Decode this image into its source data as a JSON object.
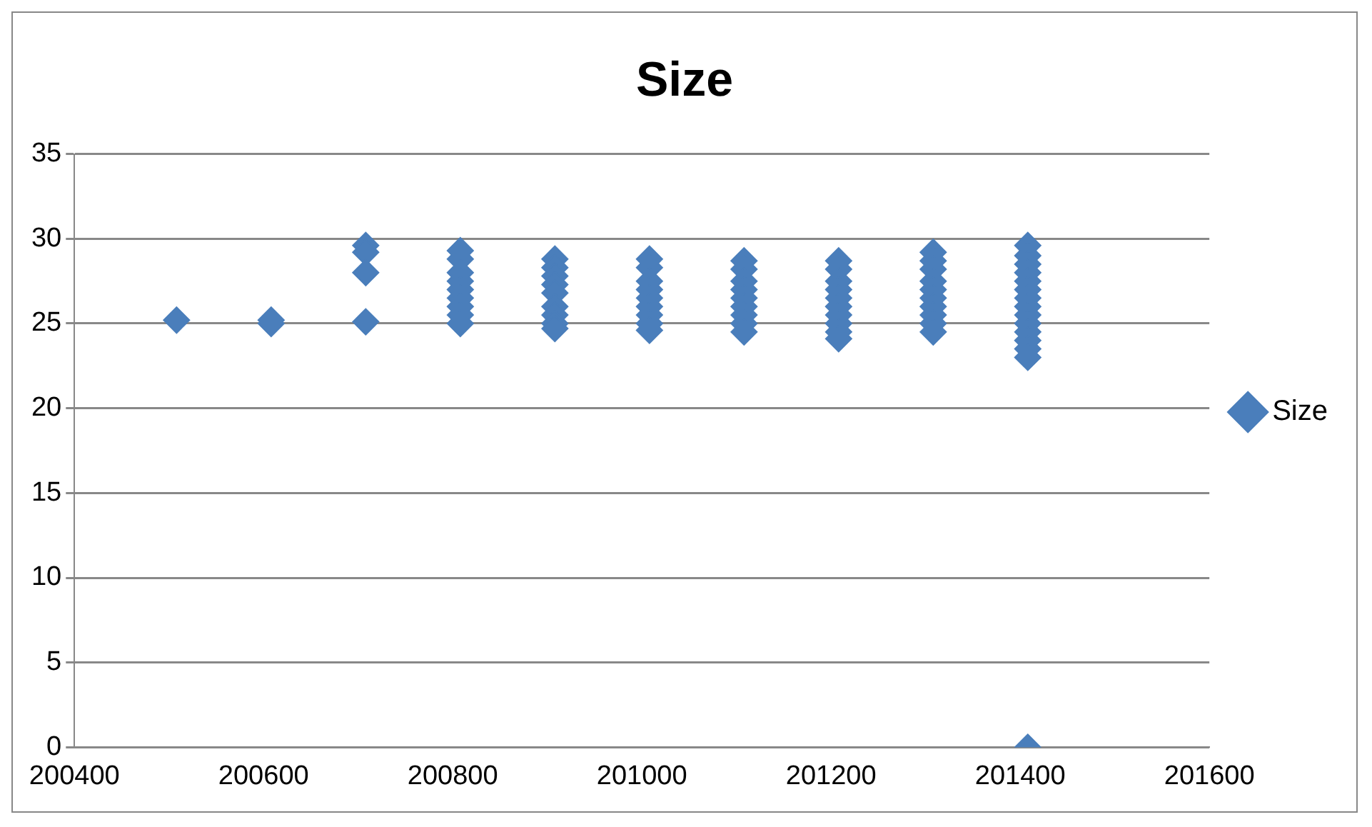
{
  "chart_data": {
    "type": "scatter",
    "title": "Size",
    "marker": "diamond",
    "grid": "y",
    "legend": "right",
    "xlim": [
      200400,
      201600
    ],
    "xticks": [
      200400,
      200600,
      200800,
      201000,
      201200,
      201400,
      201600
    ],
    "ylim": [
      0,
      35
    ],
    "yticks": [
      0,
      5,
      10,
      15,
      20,
      25,
      30,
      35
    ],
    "series": [
      {
        "name": "Size",
        "color": "#4a7ebb",
        "x": [
          200508,
          200608,
          200608,
          200708,
          200708,
          200708,
          200708,
          200808,
          200808,
          200808,
          200808,
          200808,
          200808,
          200808,
          200808,
          200808,
          200908,
          200908,
          200908,
          200908,
          200908,
          200908,
          200908,
          200908,
          200908,
          201008,
          201008,
          201008,
          201008,
          201008,
          201008,
          201008,
          201008,
          201008,
          201108,
          201108,
          201108,
          201108,
          201108,
          201108,
          201108,
          201108,
          201108,
          201208,
          201208,
          201208,
          201208,
          201208,
          201208,
          201208,
          201208,
          201208,
          201208,
          201308,
          201308,
          201308,
          201308,
          201308,
          201308,
          201308,
          201308,
          201308,
          201308,
          201408,
          201408,
          201408,
          201408,
          201408,
          201408,
          201408,
          201408,
          201408,
          201408,
          201408,
          201408,
          201408,
          201408,
          201408
        ],
        "values": [
          25.2,
          25.2,
          25.0,
          29.6,
          29.2,
          28.0,
          25.1,
          29.3,
          28.8,
          28.0,
          27.5,
          27.0,
          26.5,
          26.0,
          25.5,
          25.0,
          28.8,
          28.3,
          27.8,
          27.3,
          26.8,
          26.0,
          25.5,
          25.0,
          24.7,
          28.8,
          28.3,
          27.5,
          27.0,
          26.5,
          26.0,
          25.5,
          25.0,
          24.6,
          28.7,
          28.2,
          27.5,
          27.0,
          26.5,
          26.0,
          25.5,
          25.0,
          24.5,
          28.7,
          28.2,
          27.5,
          27.0,
          26.5,
          26.0,
          25.5,
          25.0,
          24.5,
          24.1,
          29.2,
          28.7,
          28.2,
          27.5,
          27.0,
          26.5,
          26.0,
          25.5,
          25.0,
          24.5,
          29.6,
          29.0,
          28.5,
          28.0,
          27.5,
          27.0,
          26.5,
          26.0,
          25.5,
          25.0,
          24.5,
          24.0,
          23.5,
          23.0,
          0
        ]
      }
    ]
  }
}
